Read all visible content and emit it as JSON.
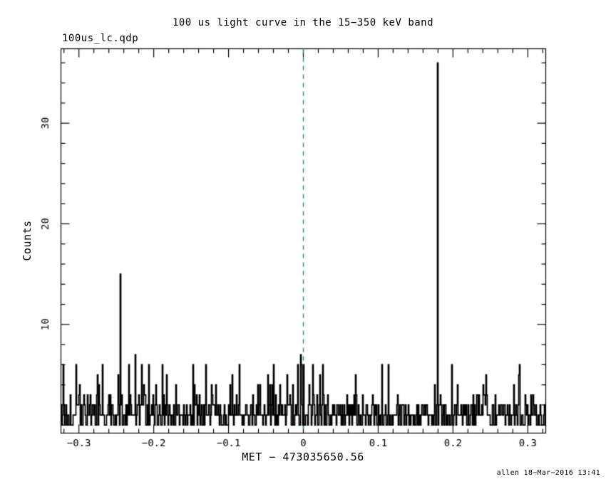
{
  "header": {
    "title": "100 us light curve in the 15−350 keV band",
    "filename_label": "100us_lc.qdp"
  },
  "footer": {
    "credit": "allen 18−Mar−2016 13:41"
  },
  "chart_data": {
    "type": "line",
    "subtype": "stepped-histogram-light-curve",
    "title": "100 us light curve in the 15−350 keV band",
    "xlabel": "MET − 473035650.56",
    "ylabel": "Counts",
    "xlim": [
      -0.324,
      0.324
    ],
    "ylim": [
      -0.8,
      37.4
    ],
    "xticks_labeled": [
      {
        "v": -0.3,
        "label": "−0.3"
      },
      {
        "v": -0.2,
        "label": "−0.2"
      },
      {
        "v": -0.1,
        "label": "−0.1"
      },
      {
        "v": 0,
        "label": "0"
      },
      {
        "v": 0.1,
        "label": "0.1"
      },
      {
        "v": 0.2,
        "label": "0.2"
      },
      {
        "v": 0.3,
        "label": "0.3"
      }
    ],
    "xticks_major": [
      -0.3,
      -0.2,
      -0.1,
      0,
      0.1,
      0.2,
      0.3
    ],
    "x_minor_step": 0.02,
    "yticks_labeled": [
      {
        "v": 10,
        "label": "10"
      },
      {
        "v": 20,
        "label": "20"
      },
      {
        "v": 30,
        "label": "30"
      }
    ],
    "yticks_major": [
      0,
      10,
      20,
      30
    ],
    "y_minor_step": 2,
    "grid": false,
    "background": "#ffffff",
    "frame_color": "#000000",
    "line_color": "#000000",
    "marker_line": {
      "x": 0,
      "style": "dashed",
      "color": "#009999"
    },
    "noise": {
      "bins": 680,
      "seed": 20160318,
      "cdf": [
        0.27,
        0.62,
        0.85,
        0.95,
        0.983,
        0.992
      ],
      "description": "Poisson-like background, counts mostly 0-3 with occasional 4-6"
    },
    "spikes": [
      {
        "x": -0.245,
        "y": 15
      },
      {
        "x": -0.225,
        "y": 7
      },
      {
        "x": -0.207,
        "y": 6
      },
      {
        "x": -0.13,
        "y": 6
      },
      {
        "x": -0.095,
        "y": 5
      },
      {
        "x": -0.003,
        "y": 7
      },
      {
        "x": 0.013,
        "y": 6
      },
      {
        "x": 0.07,
        "y": 5
      },
      {
        "x": 0.18,
        "y": 36
      },
      {
        "x": 0.245,
        "y": 5
      },
      {
        "x": 0.29,
        "y": 6
      }
    ]
  }
}
